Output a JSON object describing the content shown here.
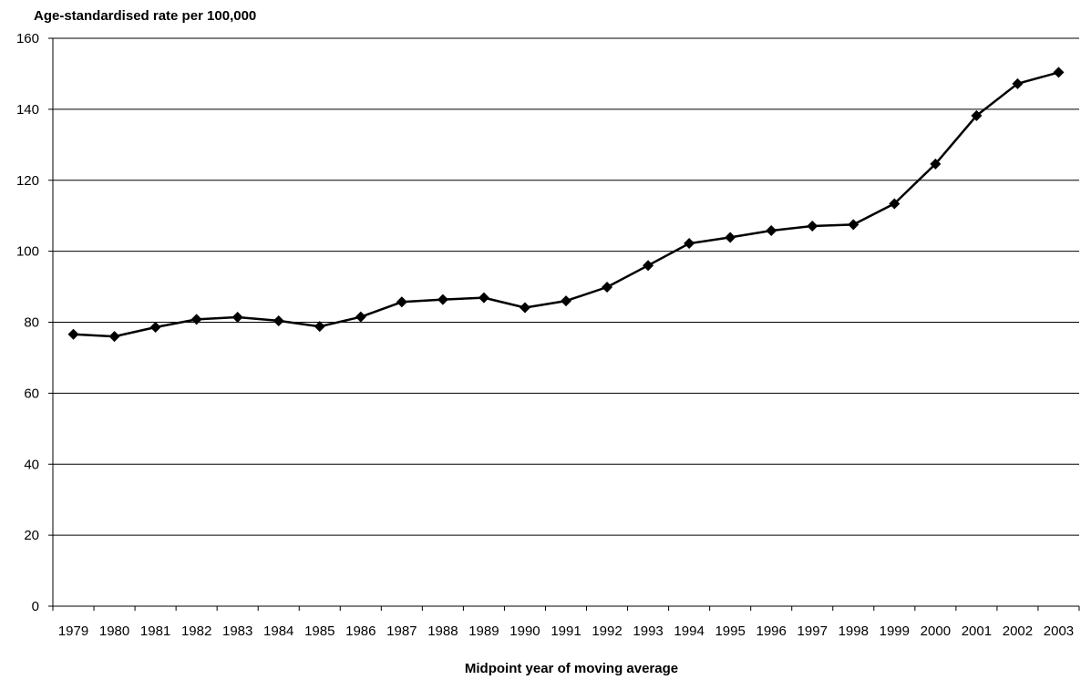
{
  "chart_data": {
    "type": "line",
    "title": "",
    "ylabel": "Age-standardised rate per 100,000",
    "xlabel": "Midpoint year of moving average",
    "categories": [
      "1979",
      "1980",
      "1981",
      "1982",
      "1983",
      "1984",
      "1985",
      "1986",
      "1987",
      "1988",
      "1989",
      "1990",
      "1991",
      "1992",
      "1993",
      "1994",
      "1995",
      "1996",
      "1997",
      "1998",
      "1999",
      "2000",
      "2001",
      "2002",
      "2003"
    ],
    "values": [
      76.6,
      76.0,
      78.6,
      80.8,
      81.4,
      80.4,
      78.8,
      81.5,
      85.7,
      86.4,
      86.9,
      84.1,
      86.0,
      89.9,
      96.0,
      102.2,
      103.9,
      105.8,
      107.1,
      107.5,
      113.4,
      124.6,
      138.2,
      147.2,
      150.4
    ],
    "ylim": [
      0,
      160
    ],
    "yticks": [
      0,
      20,
      40,
      60,
      80,
      100,
      120,
      140,
      160
    ],
    "grid": true,
    "legend": "none",
    "line_color": "#000000",
    "marker": "diamond"
  }
}
